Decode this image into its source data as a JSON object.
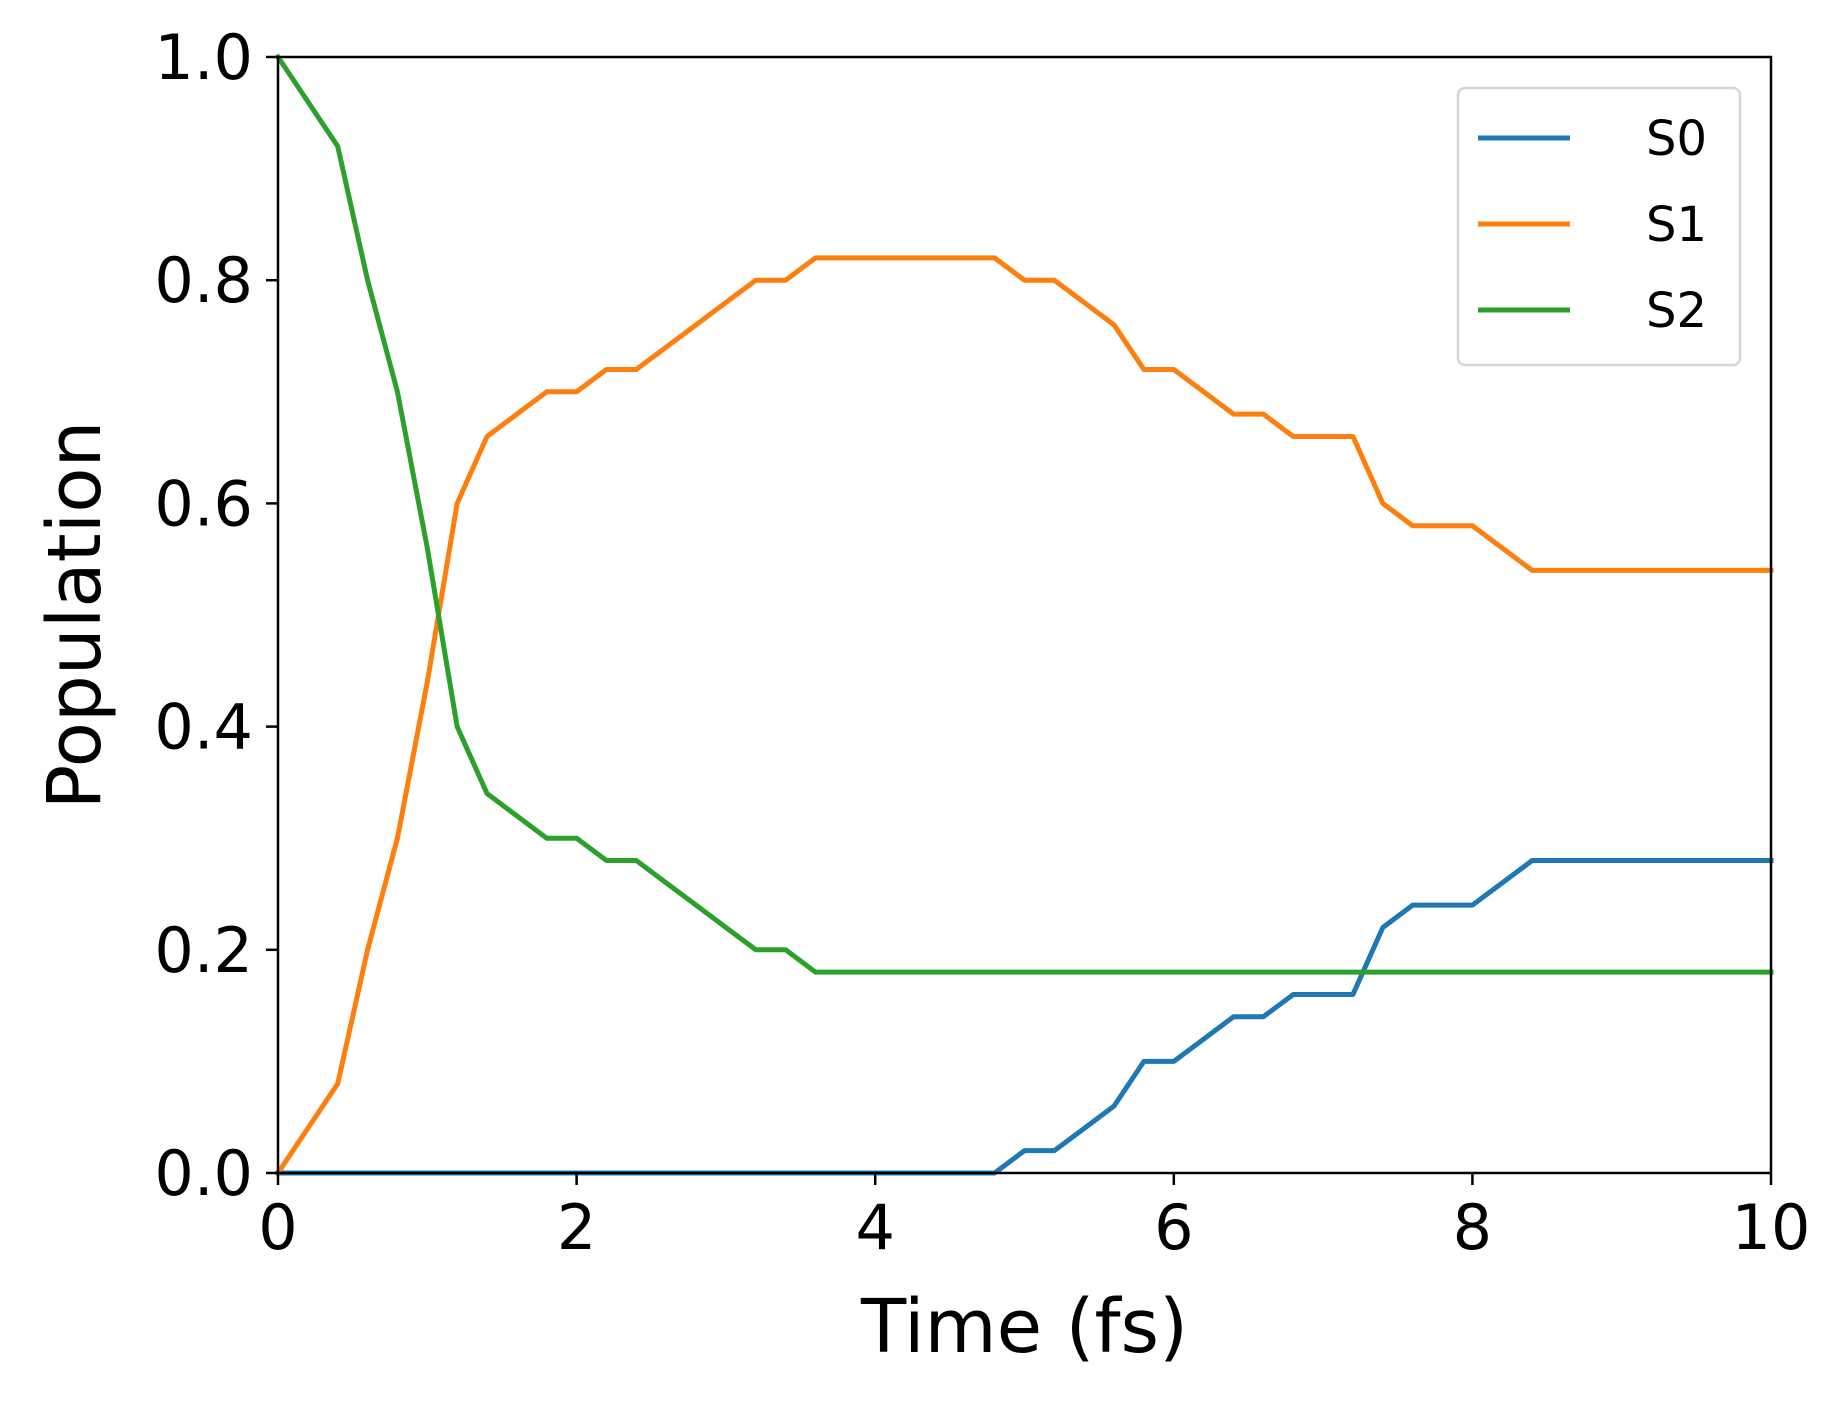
{
  "chart_data": {
    "type": "line",
    "title": "",
    "xlabel": "Time (fs)",
    "ylabel": "Population",
    "xlim": [
      0,
      10
    ],
    "ylim": [
      0,
      1
    ],
    "xticks": [
      0,
      2,
      4,
      6,
      8,
      10
    ],
    "xtick_labels": [
      "0",
      "2",
      "4",
      "6",
      "8",
      "10"
    ],
    "yticks": [
      0,
      0.2,
      0.4,
      0.6,
      0.8,
      1.0
    ],
    "ytick_labels": [
      "0.0",
      "0.2",
      "0.4",
      "0.6",
      "0.8",
      "1.0"
    ],
    "grid": false,
    "legend_position": "top-right",
    "x": [
      0,
      0.2,
      0.4,
      0.6,
      0.8,
      1.0,
      1.2,
      1.4,
      1.6,
      1.8,
      2.0,
      2.2,
      2.4,
      2.6,
      2.8,
      3.0,
      3.2,
      3.4,
      3.6,
      3.8,
      4.0,
      4.2,
      4.4,
      4.6,
      4.8,
      5.0,
      5.2,
      5.4,
      5.6,
      5.8,
      6.0,
      6.2,
      6.4,
      6.6,
      6.8,
      7.0,
      7.2,
      7.4,
      7.6,
      7.8,
      8.0,
      8.2,
      8.4,
      8.6,
      8.8,
      9.0,
      9.2,
      9.4,
      9.6,
      9.8,
      10.0
    ],
    "series": [
      {
        "name": "S0",
        "color": "#1f77b4",
        "values": [
          0,
          0,
          0,
          0,
          0,
          0,
          0,
          0,
          0,
          0,
          0,
          0,
          0,
          0,
          0,
          0,
          0,
          0,
          0,
          0,
          0,
          0,
          0,
          0,
          0,
          0.02,
          0.02,
          0.04,
          0.06,
          0.1,
          0.1,
          0.12,
          0.14,
          0.14,
          0.16,
          0.16,
          0.16,
          0.22,
          0.24,
          0.24,
          0.24,
          0.26,
          0.28,
          0.28,
          0.28,
          0.28,
          0.28,
          0.28,
          0.28,
          0.28,
          0.28
        ]
      },
      {
        "name": "S1",
        "color": "#ff7f0e",
        "values": [
          0,
          0.04,
          0.08,
          0.2,
          0.3,
          0.44,
          0.6,
          0.66,
          0.68,
          0.7,
          0.7,
          0.72,
          0.72,
          0.74,
          0.76,
          0.78,
          0.8,
          0.8,
          0.82,
          0.82,
          0.82,
          0.82,
          0.82,
          0.82,
          0.82,
          0.8,
          0.8,
          0.78,
          0.76,
          0.72,
          0.72,
          0.7,
          0.68,
          0.68,
          0.66,
          0.66,
          0.66,
          0.6,
          0.58,
          0.58,
          0.58,
          0.56,
          0.54,
          0.54,
          0.54,
          0.54,
          0.54,
          0.54,
          0.54,
          0.54,
          0.54
        ]
      },
      {
        "name": "S2",
        "color": "#2ca02c",
        "values": [
          1.0,
          0.96,
          0.92,
          0.8,
          0.7,
          0.56,
          0.4,
          0.34,
          0.32,
          0.3,
          0.3,
          0.28,
          0.28,
          0.26,
          0.24,
          0.22,
          0.2,
          0.2,
          0.18,
          0.18,
          0.18,
          0.18,
          0.18,
          0.18,
          0.18,
          0.18,
          0.18,
          0.18,
          0.18,
          0.18,
          0.18,
          0.18,
          0.18,
          0.18,
          0.18,
          0.18,
          0.18,
          0.18,
          0.18,
          0.18,
          0.18,
          0.18,
          0.18,
          0.18,
          0.18,
          0.18,
          0.18,
          0.18,
          0.18,
          0.18,
          0.18
        ]
      }
    ]
  }
}
